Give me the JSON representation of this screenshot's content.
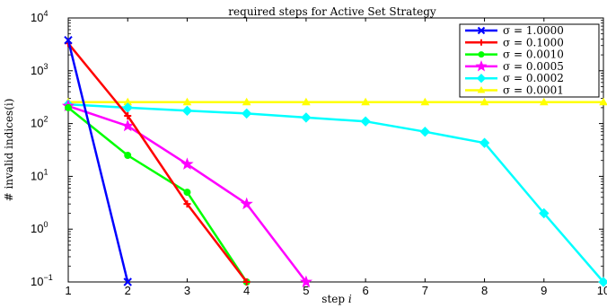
{
  "chart_data": {
    "type": "line",
    "title": "required steps for Active Set Strategy",
    "xlabel": "step i",
    "ylabel": "# invalid indices(i)",
    "yscale": "log",
    "xlim": [
      1,
      10
    ],
    "ylim": [
      0.1,
      10000
    ],
    "x_ticks": [
      1,
      2,
      3,
      4,
      5,
      6,
      7,
      8,
      9,
      10
    ],
    "y_ticks": [
      {
        "value": 0.1,
        "base": "10",
        "exp": "−1"
      },
      {
        "value": 1,
        "base": "10",
        "exp": "0"
      },
      {
        "value": 10,
        "base": "10",
        "exp": "1"
      },
      {
        "value": 100,
        "base": "10",
        "exp": "2"
      },
      {
        "value": 1000,
        "base": "10",
        "exp": "3"
      },
      {
        "value": 10000,
        "base": "10",
        "exp": "4"
      }
    ],
    "grid": false,
    "legend_position": "top-right",
    "series": [
      {
        "name": "σ = 1.0000",
        "color": "#0000ff",
        "marker": "x",
        "x": [
          1,
          2
        ],
        "y": [
          3800,
          0.1
        ]
      },
      {
        "name": "σ = 0.1000",
        "color": "#ff0000",
        "marker": "plus",
        "x": [
          1,
          2,
          3,
          4
        ],
        "y": [
          3300,
          140,
          3,
          0.1
        ]
      },
      {
        "name": "σ = 0.0010",
        "color": "#00ff00",
        "marker": "circle",
        "x": [
          1,
          2,
          3,
          4
        ],
        "y": [
          200,
          25,
          5,
          0.1
        ]
      },
      {
        "name": "σ = 0.0005",
        "color": "#ff00ff",
        "marker": "star",
        "x": [
          1,
          2,
          3,
          4,
          5
        ],
        "y": [
          215,
          90,
          17,
          3,
          0.1
        ]
      },
      {
        "name": "σ = 0.0002",
        "color": "#00ffff",
        "marker": "diamond",
        "x": [
          1,
          2,
          3,
          4,
          5,
          6,
          7,
          8,
          9,
          10
        ],
        "y": [
          230,
          200,
          175,
          155,
          130,
          110,
          70,
          43,
          2,
          0.1
        ]
      },
      {
        "name": "σ = 0.0001",
        "color": "#ffff00",
        "marker": "triangle",
        "x": [
          1,
          2,
          3,
          4,
          5,
          6,
          7,
          8,
          9,
          10
        ],
        "y": [
          255,
          255,
          255,
          255,
          255,
          255,
          255,
          255,
          255,
          255
        ]
      }
    ]
  }
}
